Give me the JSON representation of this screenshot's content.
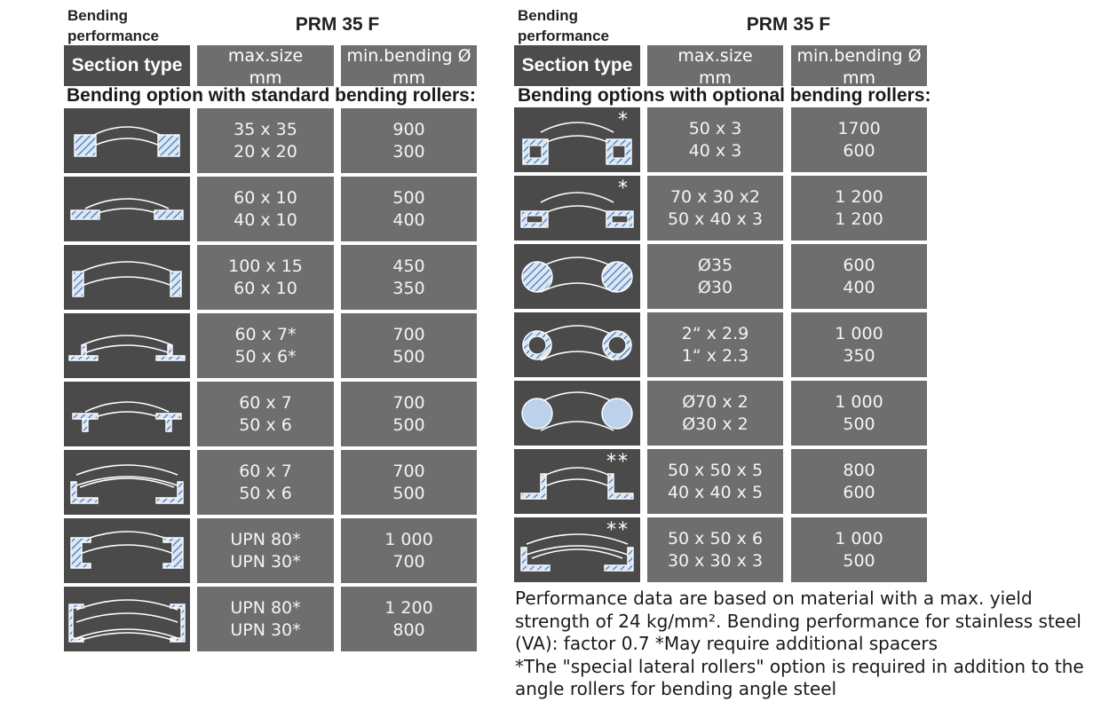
{
  "left": {
    "bending_label_1": "Bending",
    "bending_label_2": "performance",
    "model": "PRM 35 F",
    "header": {
      "section_type": "Section type",
      "max_size_1": "max.size",
      "max_size_2": "mm",
      "min_bend_1": "min.bending Ø",
      "min_bend_2": "mm"
    },
    "subtitle": "Bending option with standard bending rollers:",
    "rows": [
      {
        "icon": "flat-square-bar-icon",
        "asterisk": "",
        "size": [
          "35 x 35",
          "20 x 20"
        ],
        "bend": [
          "900",
          "300"
        ]
      },
      {
        "icon": "flat-bar-horizontal-icon",
        "asterisk": "",
        "size": [
          "60 x 10",
          "40 x 10"
        ],
        "bend": [
          "500",
          "400"
        ]
      },
      {
        "icon": "flat-bar-vertical-icon",
        "asterisk": "",
        "size": [
          "100 x 15",
          "60 x 10"
        ],
        "bend": [
          "450",
          "350"
        ]
      },
      {
        "icon": "tee-section-icon",
        "asterisk": "",
        "size": [
          "60 x 7*",
          "50 x 6*"
        ],
        "bend": [
          "700",
          "500"
        ]
      },
      {
        "icon": "tee-section-inverted-icon",
        "asterisk": "",
        "size": [
          "60 x 7",
          "50 x 6"
        ],
        "bend": [
          "700",
          "500"
        ]
      },
      {
        "icon": "angle-section-icon",
        "asterisk": "",
        "size": [
          "60 x 7",
          "50 x 6"
        ],
        "bend": [
          "700",
          "500"
        ]
      },
      {
        "icon": "upn-channel-web-icon",
        "asterisk": "",
        "size": [
          "UPN 80*",
          "UPN 30*"
        ],
        "bend": [
          "1 000",
          "700"
        ]
      },
      {
        "icon": "upn-channel-flange-icon",
        "asterisk": "",
        "size": [
          "UPN 80*",
          "UPN 30*"
        ],
        "bend": [
          "1 200",
          "800"
        ]
      }
    ]
  },
  "right": {
    "bending_label_1": "Bending",
    "bending_label_2": "performance",
    "model": "PRM 35 F",
    "header": {
      "section_type": "Section type",
      "max_size_1": "max.size",
      "max_size_2": "mm",
      "min_bend_1": "min.bending Ø",
      "min_bend_2": "mm"
    },
    "subtitle": "Bending options with optional bending rollers:",
    "rows": [
      {
        "icon": "square-tube-icon",
        "asterisk": "*",
        "size": [
          "50 x 3",
          "40 x 3"
        ],
        "bend": [
          "1700",
          "600"
        ]
      },
      {
        "icon": "rectangular-tube-icon",
        "asterisk": "*",
        "size": [
          "70 x 30 x2",
          "50 x 40 x 3"
        ],
        "bend": [
          "1 200",
          "1 200"
        ]
      },
      {
        "icon": "round-bar-icon",
        "asterisk": "",
        "size": [
          "Ø35",
          "Ø30"
        ],
        "bend": [
          "600",
          "400"
        ]
      },
      {
        "icon": "pipe-icon",
        "asterisk": "",
        "size": [
          "2“ x 2.9",
          "1“ x 2.3"
        ],
        "bend": [
          "1 000",
          "350"
        ]
      },
      {
        "icon": "round-tube-icon",
        "asterisk": "",
        "size": [
          "Ø70 x 2",
          "Ø30 x 2"
        ],
        "bend": [
          "1 000",
          "500"
        ]
      },
      {
        "icon": "angle-leg-out-icon",
        "asterisk": "**",
        "size": [
          "50 x 50 x 5",
          "40 x 40 x 5"
        ],
        "bend": [
          "800",
          "600"
        ]
      },
      {
        "icon": "angle-leg-in-icon",
        "asterisk": "**",
        "size": [
          "50 x 50 x 6",
          "30 x 30 x 3"
        ],
        "bend": [
          "1 000",
          "500"
        ]
      }
    ]
  },
  "notes": [
    "Performance data are based on material with a max. yield",
    "strength of 24 kg/mm². Bending performance for stainless steel",
    "(VA): factor 0.7  *May require additional spacers",
    "*The \"special lateral rollers\" option is required in addition to the",
    "angle rollers for bending angle steel"
  ],
  "colors": {
    "dark_cell": "#4a4a4a",
    "value_cell": "#6e6e6e",
    "profile_fill": "#bcd2ea",
    "hatch": "#3f73b8"
  }
}
